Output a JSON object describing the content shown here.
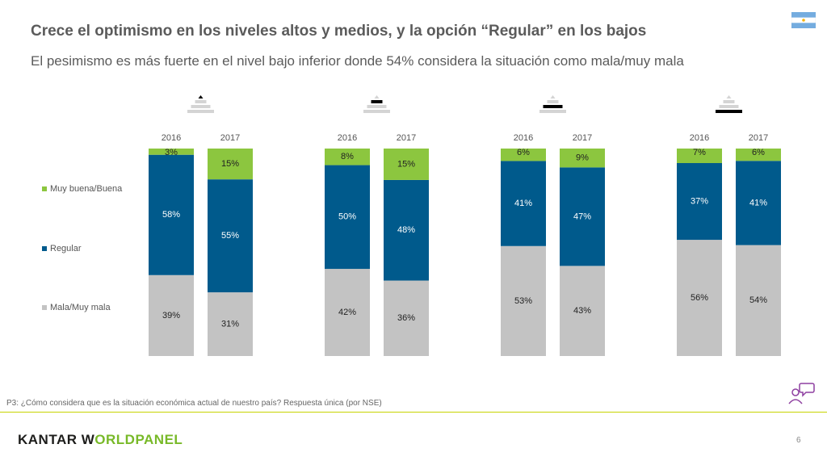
{
  "header": {
    "title": "Crece el optimismo en los niveles altos y medios, y la opción “Regular” en los bajos",
    "subtitle": "El pesimismo es más fuerte en el nivel bajo inferior donde 54% considera la situación como mala/muy mala"
  },
  "colors": {
    "muy_buena": "#8cc63f",
    "regular": "#005a8c",
    "mala": "#c3c3c3",
    "pyramid_gray": "#d4d4d4",
    "pyramid_active": "#000000"
  },
  "chart_data": {
    "type": "bar",
    "stacked": true,
    "percent_stacked": true,
    "legend_position": "left",
    "series_order": [
      "Mala/Muy mala",
      "Regular",
      "Muy buena/Buena"
    ],
    "legend": [
      {
        "name": "Muy buena/Buena",
        "color": "#8cc63f"
      },
      {
        "name": "Regular",
        "color": "#005a8c"
      },
      {
        "name": "Mala/Muy mala",
        "color": "#c3c3c3"
      }
    ],
    "groups": [
      {
        "icon_level": 1,
        "bars": [
          {
            "year": "2016",
            "values": [
              39,
              58,
              3
            ],
            "labels": [
              "39%",
              "58%",
              "3%"
            ]
          },
          {
            "year": "2017",
            "values": [
              31,
              55,
              15
            ],
            "labels": [
              "31%",
              "55%",
              "15%"
            ]
          }
        ]
      },
      {
        "icon_level": 2,
        "bars": [
          {
            "year": "2016",
            "values": [
              42,
              50,
              8
            ],
            "labels": [
              "42%",
              "50%",
              "8%"
            ]
          },
          {
            "year": "2017",
            "values": [
              36,
              48,
              15
            ],
            "labels": [
              "36%",
              "48%",
              "15%"
            ]
          }
        ]
      },
      {
        "icon_level": 3,
        "bars": [
          {
            "year": "2016",
            "values": [
              53,
              41,
              6
            ],
            "labels": [
              "53%",
              "41%",
              "6%"
            ]
          },
          {
            "year": "2017",
            "values": [
              43,
              47,
              9
            ],
            "labels": [
              "43%",
              "47%",
              "9%"
            ]
          }
        ]
      },
      {
        "icon_level": 4,
        "bars": [
          {
            "year": "2016",
            "values": [
              56,
              37,
              7
            ],
            "labels": [
              "56%",
              "37%",
              "7%"
            ]
          },
          {
            "year": "2017",
            "values": [
              54,
              41,
              6
            ],
            "labels": [
              "54%",
              "41%",
              "6%"
            ]
          }
        ]
      }
    ]
  },
  "footer": {
    "question": "P3: ¿Cómo considera que es la situación económica actual de nuestro país? Respuesta única (por NSE)",
    "brand_part1": "KANTAR W",
    "brand_o": "O",
    "brand_part2": "RLDPANEL",
    "page_number": "6"
  }
}
